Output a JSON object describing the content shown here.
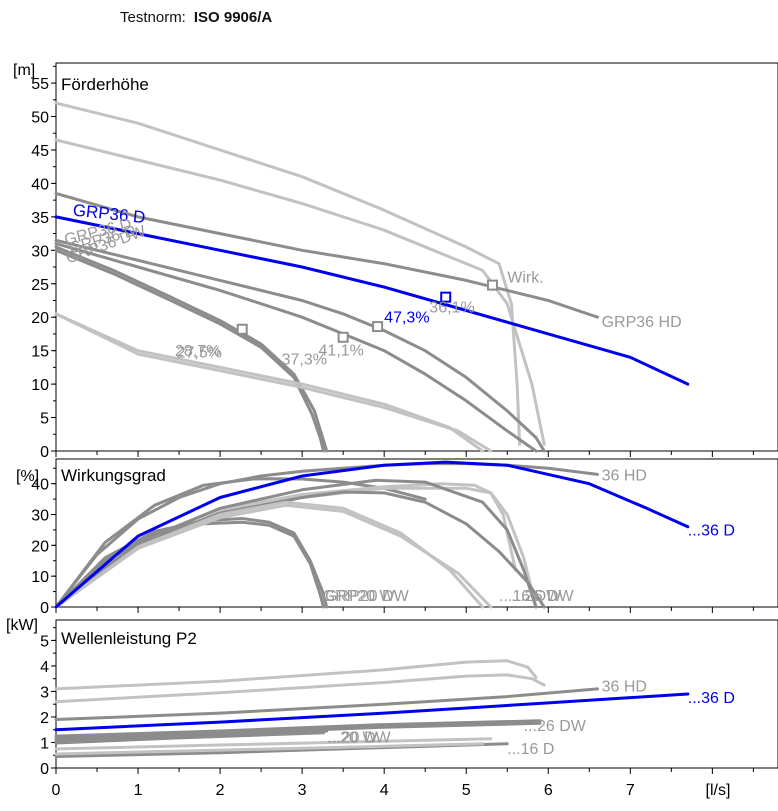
{
  "header": {
    "norm_label": "Testnorm:",
    "norm_value": "ISO 9906/A"
  },
  "colors": {
    "highlight": "#0000ee",
    "curve_dark": "#8c8c8c",
    "curve_light": "#c2c2c2",
    "label_grey": "#999999",
    "axis": "#000000"
  },
  "chart_data": [
    {
      "type": "line",
      "panel": "head",
      "title": "Förderhöhe",
      "ylabel": "[m]",
      "xlabel": "[l/s]",
      "xlim": [
        0,
        8.8
      ],
      "ylim": [
        0,
        58
      ],
      "yticks": [
        0,
        5,
        10,
        15,
        20,
        25,
        30,
        35,
        40,
        45,
        50,
        55
      ],
      "grid": false,
      "highlight": {
        "name": "GRP36 D",
        "x": [
          0,
          1,
          2,
          3,
          4,
          5,
          6,
          7,
          7.7
        ],
        "y": [
          35,
          32.5,
          30,
          27.5,
          24.5,
          21,
          17.5,
          14,
          10
        ]
      },
      "series": [
        {
          "x": [
            0,
            1,
            2,
            3,
            4,
            5,
            5.4,
            5.55,
            5.62,
            5.65
          ],
          "y": [
            52,
            49,
            45,
            41,
            36,
            30.5,
            28,
            22,
            10,
            1
          ],
          "color": "light"
        },
        {
          "x": [
            0,
            1,
            2,
            3,
            4,
            4.8,
            5.2,
            5.5,
            5.8,
            5.95
          ],
          "y": [
            46.5,
            43.5,
            40.5,
            37,
            33,
            29,
            27,
            22,
            10,
            1
          ],
          "color": "light"
        },
        {
          "x": [
            0,
            1,
            2,
            3,
            4,
            5,
            6,
            6.6
          ],
          "y": [
            38.5,
            35,
            32.5,
            30,
            28,
            25.5,
            22.5,
            20
          ],
          "color": "dark"
        },
        {
          "x": [
            0,
            1,
            2,
            3,
            3.5,
            4,
            4.5,
            5,
            5.5,
            5.85,
            5.95
          ],
          "y": [
            31.5,
            28.5,
            25.5,
            22.5,
            20.5,
            18,
            15,
            11,
            6,
            2,
            0
          ],
          "color": "dark"
        },
        {
          "x": [
            0,
            1,
            2,
            3,
            3.5,
            4,
            4.5,
            5,
            5.5,
            5.85
          ],
          "y": [
            31,
            27.5,
            24,
            20,
            17.5,
            15,
            11.5,
            7.5,
            3,
            0
          ],
          "color": "dark"
        },
        {
          "x": [
            0,
            0.7,
            1.4,
            2,
            2.5,
            2.9,
            3.15,
            3.25,
            3.3
          ],
          "y": [
            30.5,
            27,
            23,
            19.5,
            16,
            11.5,
            6,
            2,
            0
          ],
          "color": "dark"
        },
        {
          "x": [
            0,
            0.7,
            1.4,
            2,
            2.5,
            2.9,
            3.12,
            3.22,
            3.26
          ],
          "y": [
            30,
            26.5,
            22.5,
            19,
            15.5,
            11,
            5.5,
            2,
            0
          ],
          "color": "dark"
        },
        {
          "x": [
            0,
            1,
            2,
            3,
            4,
            4.8,
            5.2
          ],
          "y": [
            20.5,
            15,
            12.5,
            10,
            7,
            3.5,
            0
          ],
          "color": "light"
        },
        {
          "x": [
            0,
            1,
            2,
            3,
            4,
            4.9,
            5.3
          ],
          "y": [
            20.5,
            14.5,
            12,
            9.5,
            6.5,
            3,
            0
          ],
          "color": "light"
        }
      ],
      "markers": [
        {
          "x": 4.75,
          "y": 23,
          "color": "highlight"
        },
        {
          "x": 5.32,
          "y": 24.8,
          "color": "dark"
        },
        {
          "x": 2.27,
          "y": 18.2,
          "color": "dark"
        },
        {
          "x": 3.5,
          "y": 17,
          "color": "dark"
        },
        {
          "x": 3.92,
          "y": 18.6,
          "color": "dark"
        }
      ],
      "labels": [
        {
          "text": "GRP36 D",
          "x": 0.2,
          "y": 35.2,
          "rot": 6,
          "color": "highlight",
          "size": 17
        },
        {
          "text": "47,3%",
          "x": 4.0,
          "y": 19.2,
          "color": "highlight",
          "size": 16
        },
        {
          "text": "Wirk.",
          "x": 5.5,
          "y": 25.2,
          "color": "grey",
          "size": 16
        },
        {
          "text": "GRP36 HD",
          "x": 6.65,
          "y": 18.5,
          "color": "grey",
          "size": 16
        },
        {
          "text": "36,1%",
          "x": 4.55,
          "y": 20.7,
          "color": "grey",
          "size": 16
        },
        {
          "text": "28,7%",
          "x": 1.45,
          "y": 14.2,
          "color": "grey",
          "size": 16
        },
        {
          "text": "27,5%",
          "x": 1.47,
          "y": 14.0,
          "color": "grey",
          "size": 16
        },
        {
          "text": "37,3%",
          "x": 2.75,
          "y": 12.9,
          "color": "grey",
          "size": 16
        },
        {
          "text": "41,1%",
          "x": 3.2,
          "y": 14.3,
          "color": "grey",
          "size": 16
        },
        {
          "text": "GRP36 D",
          "x": 0.12,
          "y": 30.8,
          "rot": -14,
          "color": "grey",
          "size": 16
        },
        {
          "text": "GRP36 D",
          "x": 0.18,
          "y": 29.5,
          "rot": -16,
          "color": "grey",
          "size": 16
        },
        {
          "text": "GRP36 DW",
          "x": 0.15,
          "y": 28.0,
          "rot": -20,
          "color": "grey",
          "size": 16
        }
      ]
    },
    {
      "type": "line",
      "panel": "efficiency",
      "title": "Wirkungsgrad",
      "ylabel": "[%]",
      "xlabel": "[l/s]",
      "xlim": [
        0,
        8.8
      ],
      "ylim": [
        0,
        48
      ],
      "yticks": [
        0,
        10,
        20,
        30,
        40
      ],
      "grid": false,
      "highlight": {
        "name": "...36 D",
        "x": [
          0,
          1,
          2,
          3,
          4,
          4.75,
          5.5,
          6.5,
          7.2,
          7.7
        ],
        "y": [
          0,
          23,
          35.5,
          42.5,
          46,
          47,
          46,
          40,
          32,
          26
        ]
      },
      "series": [
        {
          "x": [
            0,
            0.5,
            1,
            1.5,
            2,
            2.5,
            3,
            3.5,
            4,
            4.5,
            5,
            5.5,
            6,
            6.6
          ],
          "y": [
            0,
            17,
            28.5,
            35.5,
            40,
            42.5,
            44,
            45,
            46,
            46.5,
            46.5,
            46,
            45,
            43
          ],
          "color": "dark"
        },
        {
          "x": [
            0,
            0.6,
            1.2,
            1.8,
            2.4,
            2.6,
            3.0,
            3.5,
            4.0,
            4.5
          ],
          "y": [
            0,
            21,
            33,
            39.5,
            41.5,
            41.6,
            41.5,
            40.5,
            38.5,
            35
          ],
          "color": "dark"
        },
        {
          "x": [
            0,
            1,
            2,
            3,
            4,
            4.7,
            5.1,
            5.3,
            5.45,
            5.6
          ],
          "y": [
            0,
            21,
            31.5,
            36.5,
            39,
            40,
            39.5,
            37,
            30,
            12
          ],
          "color": "light"
        },
        {
          "x": [
            0,
            1,
            2,
            3,
            4,
            5,
            5.3,
            5.5,
            5.7,
            5.85
          ],
          "y": [
            0,
            20,
            30,
            35.5,
            38.5,
            38.5,
            37,
            30,
            16,
            0
          ],
          "color": "light"
        },
        {
          "x": [
            0,
            1,
            2,
            3,
            3.9,
            4.5,
            5.2,
            5.5,
            5.7,
            5.85
          ],
          "y": [
            0,
            21,
            32,
            38,
            41.1,
            40.5,
            34,
            25,
            12,
            0
          ],
          "color": "dark"
        },
        {
          "x": [
            0,
            1,
            2,
            3,
            3.5,
            4,
            4.5,
            5,
            5.4,
            5.75,
            5.95
          ],
          "y": [
            0,
            20,
            30.5,
            35.5,
            37.3,
            37,
            34,
            27,
            18,
            8,
            0
          ],
          "color": "dark"
        },
        {
          "x": [
            0,
            0.6,
            1.2,
            1.8,
            2.27,
            2.6,
            2.9,
            3.1,
            3.25,
            3.3
          ],
          "y": [
            0,
            16,
            24.5,
            28,
            28.7,
            27.5,
            24,
            15,
            5,
            0
          ],
          "color": "dark"
        },
        {
          "x": [
            0,
            0.6,
            1.2,
            1.8,
            2.27,
            2.6,
            2.9,
            3.1,
            3.22,
            3.26
          ],
          "y": [
            0,
            15,
            23.5,
            27,
            27.5,
            26.5,
            23,
            14,
            4,
            0
          ],
          "color": "dark"
        },
        {
          "x": [
            0,
            1,
            2,
            2.8,
            3.5,
            4.2,
            4.8,
            5.2
          ],
          "y": [
            0,
            19.5,
            30,
            34,
            32,
            24,
            12,
            0
          ],
          "color": "light"
        },
        {
          "x": [
            0,
            1,
            2,
            2.8,
            3.5,
            4.2,
            4.9,
            5.3
          ],
          "y": [
            0,
            19,
            29,
            33,
            31,
            23,
            11,
            0
          ],
          "color": "light"
        }
      ],
      "labels": [
        {
          "text": "36 HD",
          "x": 6.65,
          "y": 41,
          "color": "grey",
          "size": 16
        },
        {
          "text": "...36 D",
          "x": 7.7,
          "y": 23.2,
          "color": "highlight",
          "size": 16
        },
        {
          "text": "GRP20 W",
          "x": 3.25,
          "y": 2,
          "color": "grey",
          "size": 16
        },
        {
          "text": "GRP20 DW",
          "x": 3.28,
          "y": 2,
          "color": "grey",
          "size": 16
        },
        {
          "text": "...16 DW",
          "x": 5.4,
          "y": 2,
          "color": "grey",
          "size": 16
        },
        {
          "text": "...26 DW",
          "x": 5.55,
          "y": 2,
          "color": "grey",
          "size": 16
        }
      ]
    },
    {
      "type": "line",
      "panel": "power",
      "title": "Wellenleistung P2",
      "ylabel": "[kW]",
      "xlabel": "[l/s]",
      "xlim": [
        0,
        8.8
      ],
      "ylim": [
        0,
        5.8
      ],
      "yticks": [
        0,
        1,
        2,
        3,
        4,
        5
      ],
      "xticks": [
        0,
        1,
        2,
        3,
        4,
        5,
        6,
        7
      ],
      "grid": false,
      "highlight": {
        "name": "...36 D",
        "x": [
          0,
          2,
          4,
          6,
          7.7
        ],
        "y": [
          1.5,
          1.8,
          2.15,
          2.55,
          2.9
        ]
      },
      "series": [
        {
          "x": [
            0,
            2,
            4,
            5,
            5.5,
            5.75,
            5.85
          ],
          "y": [
            3.1,
            3.4,
            3.85,
            4.15,
            4.2,
            3.95,
            3.55
          ],
          "color": "light"
        },
        {
          "x": [
            0,
            2,
            4,
            5,
            5.5,
            5.8,
            5.95
          ],
          "y": [
            2.6,
            2.95,
            3.35,
            3.6,
            3.65,
            3.5,
            3.25
          ],
          "color": "light"
        },
        {
          "x": [
            0,
            2,
            4,
            5.5,
            6.6
          ],
          "y": [
            1.9,
            2.15,
            2.5,
            2.8,
            3.1
          ],
          "color": "dark"
        },
        {
          "x": [
            0,
            2,
            4,
            5.9
          ],
          "y": [
            1.25,
            1.45,
            1.7,
            1.85
          ],
          "color": "dark"
        },
        {
          "x": [
            0,
            2,
            4,
            5.9
          ],
          "y": [
            1.15,
            1.35,
            1.6,
            1.75
          ],
          "color": "dark"
        },
        {
          "x": [
            0,
            1.5,
            3.3
          ],
          "y": [
            1.05,
            1.25,
            1.45
          ],
          "color": "dark"
        },
        {
          "x": [
            0,
            1.5,
            3.26
          ],
          "y": [
            0.98,
            1.18,
            1.38
          ],
          "color": "dark"
        },
        {
          "x": [
            0,
            2,
            4,
            5.5
          ],
          "y": [
            0.45,
            0.6,
            0.8,
            0.95
          ],
          "color": "dark"
        },
        {
          "x": [
            0,
            2,
            4,
            5.3
          ],
          "y": [
            0.75,
            0.9,
            1.05,
            1.15
          ],
          "color": "light"
        },
        {
          "x": [
            0,
            2,
            4,
            5.2
          ],
          "y": [
            0.55,
            0.7,
            0.85,
            0.95
          ],
          "color": "light"
        }
      ],
      "labels": [
        {
          "text": "36 HD",
          "x": 6.65,
          "y": 3.0,
          "color": "grey",
          "size": 16
        },
        {
          "text": "...36 D",
          "x": 7.7,
          "y": 2.55,
          "color": "highlight",
          "size": 16
        },
        {
          "text": "...26 DW",
          "x": 5.7,
          "y": 1.45,
          "color": "grey",
          "size": 16
        },
        {
          "text": "...20 W",
          "x": 3.3,
          "y": 1.0,
          "color": "grey",
          "size": 16
        },
        {
          "text": "...20 DW",
          "x": 3.32,
          "y": 1.0,
          "color": "grey",
          "size": 16
        },
        {
          "text": "...16 D",
          "x": 5.5,
          "y": 0.55,
          "color": "grey",
          "size": 16
        }
      ]
    }
  ]
}
